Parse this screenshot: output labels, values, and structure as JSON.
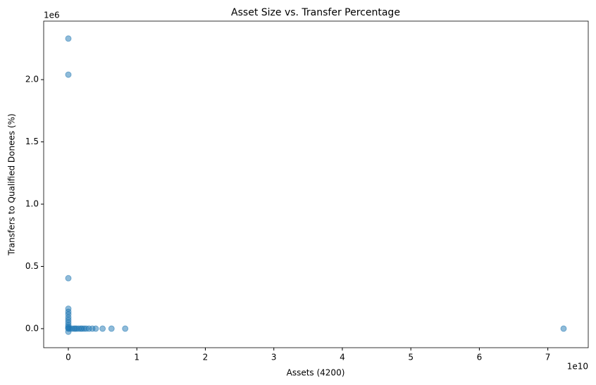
{
  "chart_data": {
    "type": "scatter",
    "title": "Asset Size vs. Transfer Percentage",
    "xlabel": "Assets (4200)",
    "ylabel": "Transfers to Qualified Donees (%)",
    "x_offset_label": "1e10",
    "y_offset_label": "1e6",
    "color": "#1f77b4",
    "opacity": 0.5,
    "x": [
      0,
      0,
      0,
      0,
      0,
      0,
      0,
      0,
      0,
      0,
      0,
      0,
      0,
      0,
      200000000,
      500000000,
      800000000,
      1000000000,
      1200000000,
      1500000000,
      1800000000,
      2000000000,
      2300000000,
      2600000000,
      3000000000,
      3500000000,
      4000000000,
      5000000000,
      6300000000,
      8300000000,
      72300000000
    ],
    "values": [
      2330000,
      2040000,
      405000,
      160000,
      135000,
      115000,
      90000,
      70000,
      50000,
      30000,
      15000,
      5000,
      0,
      -25000,
      0,
      0,
      0,
      0,
      0,
      0,
      0,
      0,
      0,
      0,
      0,
      0,
      0,
      0,
      0,
      0,
      0
    ],
    "xlim": [
      -3600000000,
      75900000000
    ],
    "ylim": [
      -153000,
      2470000
    ],
    "xticks": [
      {
        "value": 0,
        "label": "0"
      },
      {
        "value": 10000000000,
        "label": "1"
      },
      {
        "value": 20000000000,
        "label": "2"
      },
      {
        "value": 30000000000,
        "label": "3"
      },
      {
        "value": 40000000000,
        "label": "4"
      },
      {
        "value": 50000000000,
        "label": "5"
      },
      {
        "value": 60000000000,
        "label": "6"
      },
      {
        "value": 70000000000,
        "label": "7"
      }
    ],
    "yticks": [
      {
        "value": 0,
        "label": "0.0"
      },
      {
        "value": 500000,
        "label": "0.5"
      },
      {
        "value": 1000000,
        "label": "1.0"
      },
      {
        "value": 1500000,
        "label": "1.5"
      },
      {
        "value": 2000000,
        "label": "2.0"
      }
    ],
    "grid": false
  }
}
